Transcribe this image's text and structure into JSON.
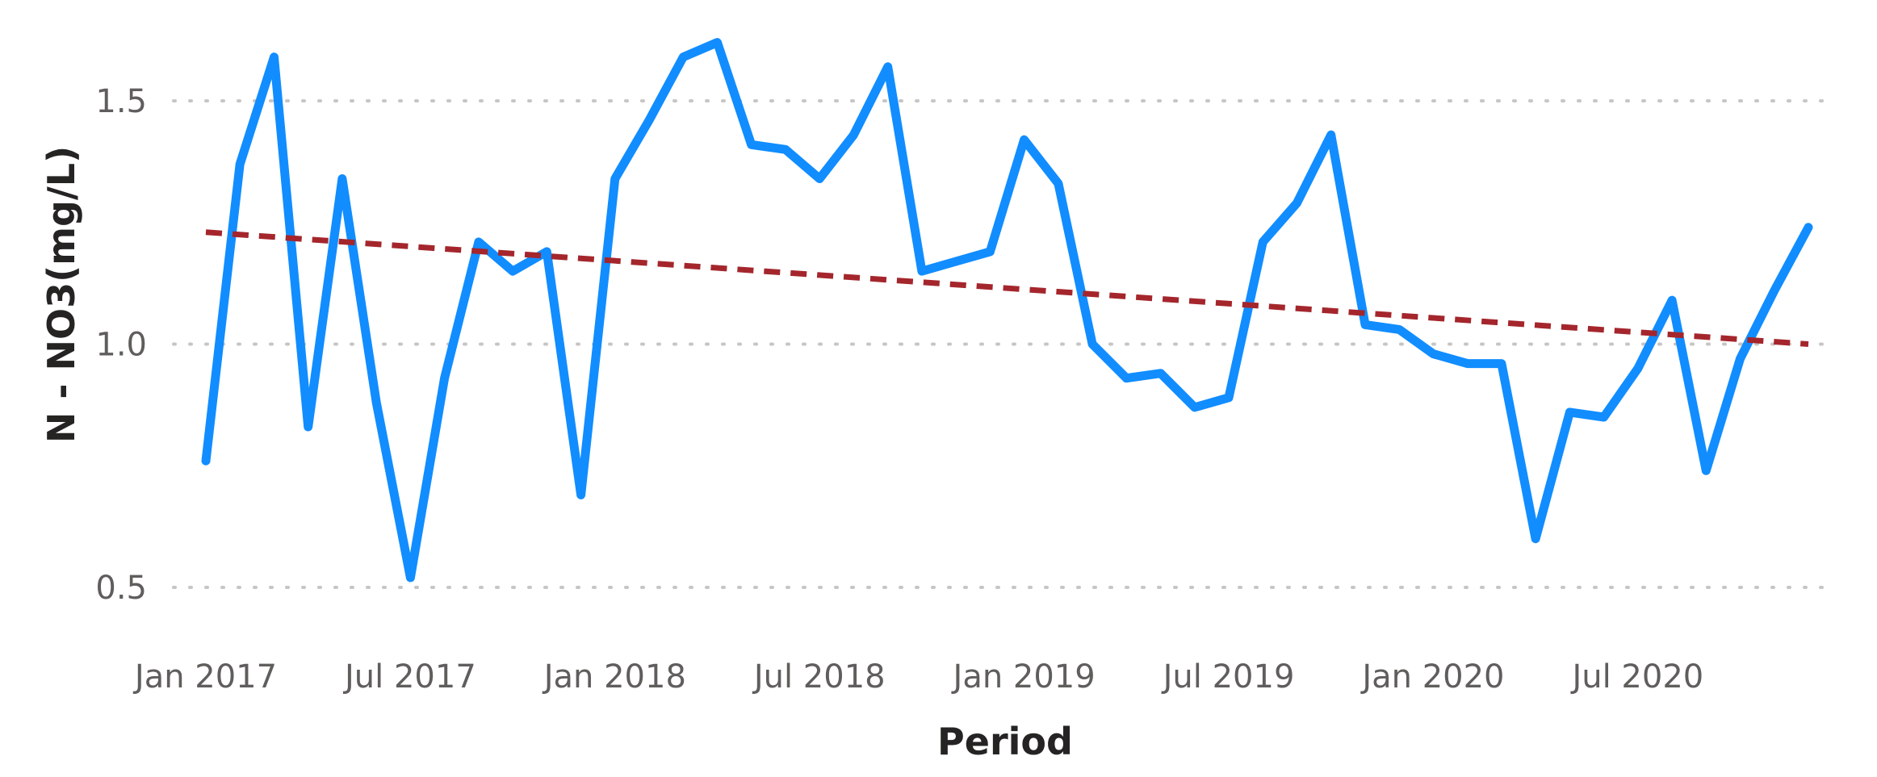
{
  "chart_data": {
    "type": "line",
    "title": "",
    "xlabel": "Period",
    "ylabel": "N - NO3(mg/L)",
    "ylim": [
      0.5,
      1.7
    ],
    "yticks": [
      {
        "value": 0.5,
        "label": "0.5"
      },
      {
        "value": 1.0,
        "label": "1.0"
      },
      {
        "value": 1.5,
        "label": "1.5"
      }
    ],
    "grid": "horizontal dotted",
    "xlim": [
      "2017-01",
      "2020-12"
    ],
    "xticks": [
      {
        "value": "2017-01",
        "label": "Jan 2017"
      },
      {
        "value": "2017-07",
        "label": "Jul 2017"
      },
      {
        "value": "2018-01",
        "label": "Jan 2018"
      },
      {
        "value": "2018-07",
        "label": "Jul 2018"
      },
      {
        "value": "2019-01",
        "label": "Jan 2019"
      },
      {
        "value": "2019-07",
        "label": "Jul 2019"
      },
      {
        "value": "2020-01",
        "label": "Jan 2020"
      },
      {
        "value": "2020-07",
        "label": "Jul 2020"
      }
    ],
    "series": [
      {
        "color": "#118dff",
        "style": "solid",
        "x": [
          "2017-01",
          "2017-02",
          "2017-03",
          "2017-04",
          "2017-05",
          "2017-06",
          "2017-07",
          "2017-08",
          "2017-09",
          "2017-10",
          "2017-11",
          "2017-12",
          "2018-01",
          "2018-02",
          "2018-03",
          "2018-04",
          "2018-05",
          "2018-06",
          "2018-07",
          "2018-08",
          "2018-09",
          "2018-10",
          "2018-11",
          "2018-12",
          "2019-01",
          "2019-02",
          "2019-03",
          "2019-04",
          "2019-05",
          "2019-06",
          "2019-07",
          "2019-08",
          "2019-09",
          "2019-10",
          "2019-11",
          "2019-12",
          "2020-01",
          "2020-02",
          "2020-03",
          "2020-04",
          "2020-05",
          "2020-06",
          "2020-07",
          "2020-08",
          "2020-09",
          "2020-10",
          "2020-11",
          "2020-12"
        ],
        "values": [
          0.76,
          1.37,
          1.59,
          0.83,
          1.34,
          0.88,
          0.52,
          0.93,
          1.21,
          1.15,
          1.19,
          0.69,
          1.34,
          1.46,
          1.59,
          1.62,
          1.41,
          1.4,
          1.34,
          1.43,
          1.57,
          1.15,
          1.17,
          1.19,
          1.42,
          1.33,
          1.0,
          0.93,
          0.94,
          0.87,
          0.89,
          1.21,
          1.29,
          1.43,
          1.04,
          1.03,
          0.98,
          0.96,
          0.96,
          0.6,
          0.86,
          0.85,
          0.95,
          1.09,
          0.74,
          0.97,
          1.11,
          1.24
        ]
      },
      {
        "color": "#a4262c",
        "style": "dashed",
        "x": [
          "2017-01",
          "2020-12"
        ],
        "values": [
          1.23,
          1.0
        ]
      }
    ]
  }
}
